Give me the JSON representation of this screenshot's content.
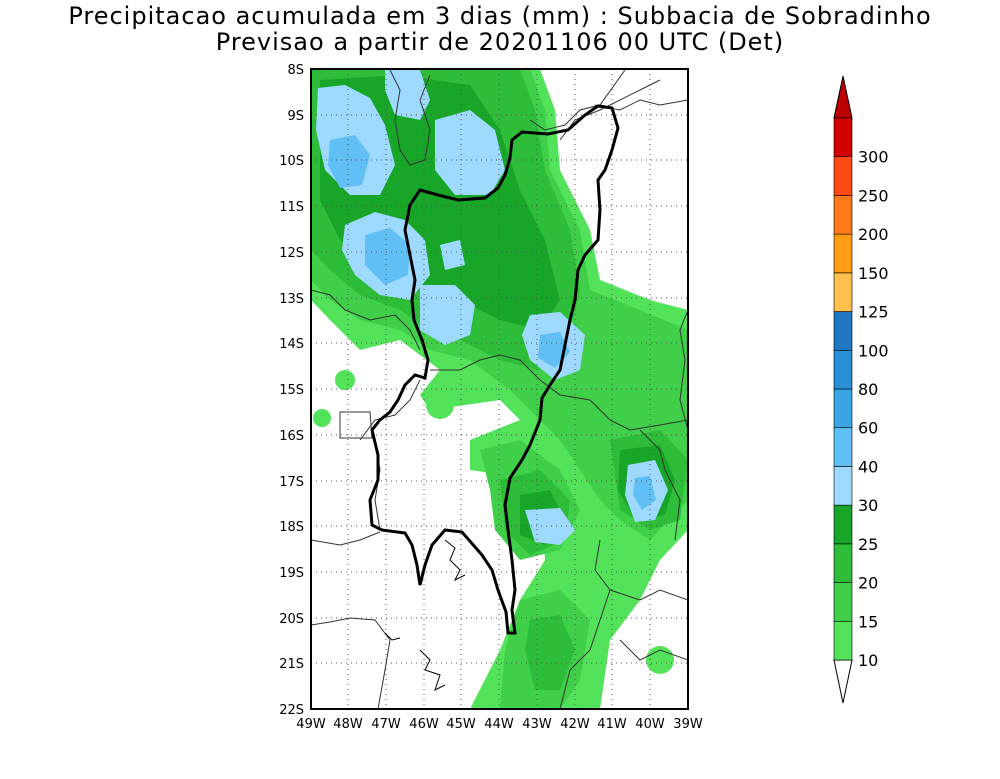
{
  "title": {
    "line1": "Precipitacao acumulada em 3 dias (mm) : Subbacia de Sobradinho",
    "line2": "Previsao a partir de 20201106 00 UTC (Det)"
  },
  "map": {
    "lat_ticks": [
      "8S",
      "9S",
      "10S",
      "11S",
      "12S",
      "13S",
      "14S",
      "15S",
      "16S",
      "17S",
      "18S",
      "19S",
      "20S",
      "21S",
      "22S"
    ],
    "lon_ticks": [
      "49W",
      "48W",
      "47W",
      "46W",
      "45W",
      "44W",
      "43W",
      "42W",
      "41W",
      "40W",
      "39W"
    ],
    "lat_range": [
      -22,
      -8
    ],
    "lon_range": [
      -49,
      -39
    ],
    "grid": "dotted"
  },
  "colorbar": {
    "levels": [
      "10",
      "15",
      "20",
      "25",
      "30",
      "40",
      "60",
      "80",
      "100",
      "125",
      "150",
      "200",
      "250",
      "300"
    ],
    "colors": [
      "#52e35a",
      "#3fcf48",
      "#2ebd38",
      "#17a628",
      "#9ed9ff",
      "#60bff5",
      "#3aa6e6",
      "#2990d6",
      "#1f78c0",
      "#ffc04d",
      "#ff9e13",
      "#ff7a1a",
      "#ff4a15",
      "#d40000"
    ],
    "under_color": "#ffffff",
    "over_color": "#bb0000"
  }
}
